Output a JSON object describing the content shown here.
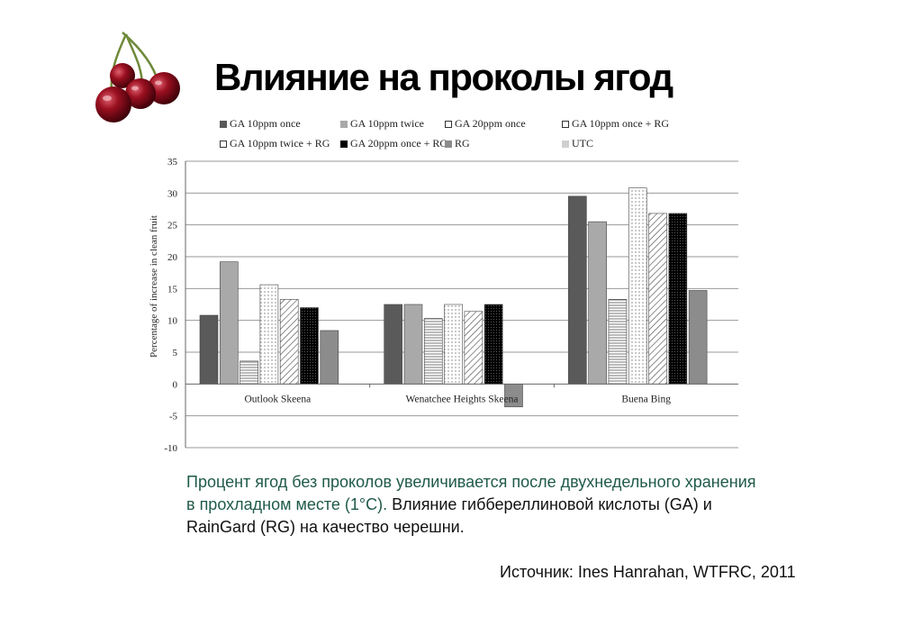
{
  "slide": {
    "title": "Влияние на проколы ягод",
    "caption_part1": "Процент ягод без проколов увеличивается после двухнедельного хранения в прохладном месте (1°C).",
    "caption_part2": " Влияние гиббереллиновой кислоты (GA) и RainGard (RG) на качество черешни.",
    "source": "Источник: Ines Hanrahan, WTFRC, 2011",
    "logo_icon": "cherries-icon"
  },
  "chart_data": {
    "type": "bar",
    "title": "",
    "xlabel": "",
    "ylabel": "Percentage of increase in clean fruit",
    "ylim": [
      -10,
      35
    ],
    "yticks": [
      35,
      30,
      25,
      20,
      15,
      10,
      5,
      0,
      -5,
      -10
    ],
    "grid": true,
    "legend_position": "top",
    "categories": [
      "Outlook Skeena",
      "Wenatchee Heights Skeena",
      "Buena Bing"
    ],
    "series": [
      {
        "name": "GA 10ppm once",
        "values": [
          10.8,
          12.5,
          29.5
        ],
        "fill": "solid",
        "color": "#5a5a5a"
      },
      {
        "name": "GA 10ppm twice",
        "values": [
          19.2,
          12.5,
          25.5
        ],
        "fill": "solid",
        "color": "#a9a9a9"
      },
      {
        "name": "GA 20ppm once",
        "values": [
          3.6,
          10.3,
          13.3
        ],
        "fill": "hlines",
        "color": "#888888"
      },
      {
        "name": "GA 10ppm once + RG",
        "values": [
          15.6,
          12.5,
          30.8
        ],
        "fill": "dots",
        "color": "#ffffff"
      },
      {
        "name": "GA 10ppm twice + RG",
        "values": [
          13.3,
          11.4,
          26.8
        ],
        "fill": "diagonal",
        "color": "#ffffff"
      },
      {
        "name": "GA 20ppm once + RG",
        "values": [
          12.0,
          12.5,
          26.8
        ],
        "fill": "dark-dots",
        "color": "#000000"
      },
      {
        "name": "RG",
        "values": [
          8.4,
          -3.6,
          14.7
        ],
        "fill": "solid",
        "color": "#8c8c8c"
      },
      {
        "name": "UTC",
        "values": [
          0,
          0,
          0
        ],
        "fill": "solid",
        "color": "#d0d0d0"
      }
    ]
  }
}
